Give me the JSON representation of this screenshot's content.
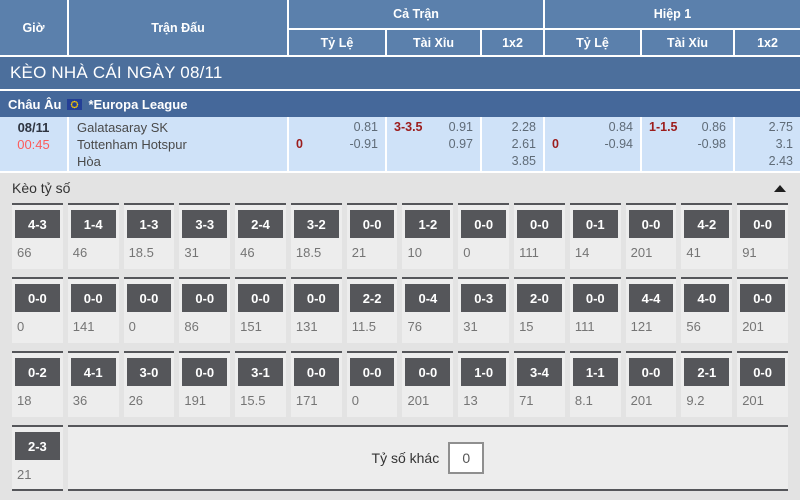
{
  "header": {
    "col_time": "Giờ",
    "col_match": "Trận Đấu",
    "group_full": "Cả Trận",
    "group_half": "Hiệp 1",
    "sub_handicap": "Tỷ Lệ",
    "sub_over_under": "Tài Xỉu",
    "sub_1x2": "1x2"
  },
  "banner": {
    "title": "KÈO NHÀ CÁI NGÀY 08/11"
  },
  "league": {
    "region": "Châu Âu",
    "name": "*Europa League"
  },
  "match": {
    "date": "08/11",
    "time": "00:45",
    "teams": {
      "home": "Galatasaray SK",
      "away": "Tottenham Hotspur",
      "draw": "Hòa"
    },
    "full_time": {
      "handicap_line": "0",
      "handicap_home": "0.81",
      "handicap_away": "-0.91",
      "ou_line": "3-3.5",
      "over": "0.91",
      "under": "0.97",
      "odds_home": "2.28",
      "odds_away": "2.61",
      "odds_draw": "3.85"
    },
    "first_half": {
      "handicap_line": "0",
      "handicap_home": "0.84",
      "handicap_away": "-0.94",
      "ou_line": "1-1.5",
      "over": "0.86",
      "under": "-0.98",
      "odds_home": "2.75",
      "odds_away": "3.1",
      "odds_draw": "2.43"
    }
  },
  "score_section": {
    "title": "Kèo tỷ số",
    "collapse_icon": "triangle-up",
    "other_label": "Tỷ số khác",
    "other_value": "0",
    "rows": [
      [
        {
          "score": "4-3",
          "odds": "66"
        },
        {
          "score": "1-4",
          "odds": "46"
        },
        {
          "score": "1-3",
          "odds": "18.5"
        },
        {
          "score": "3-3",
          "odds": "31"
        },
        {
          "score": "2-4",
          "odds": "46"
        },
        {
          "score": "3-2",
          "odds": "18.5"
        },
        {
          "score": "0-0",
          "odds": "21"
        },
        {
          "score": "1-2",
          "odds": "10"
        },
        {
          "score": "0-0",
          "odds": "0"
        },
        {
          "score": "0-0",
          "odds": "111"
        },
        {
          "score": "0-1",
          "odds": "14"
        },
        {
          "score": "0-0",
          "odds": "201"
        },
        {
          "score": "4-2",
          "odds": "41"
        },
        {
          "score": "0-0",
          "odds": "91"
        }
      ],
      [
        {
          "score": "0-0",
          "odds": "0"
        },
        {
          "score": "0-0",
          "odds": "141"
        },
        {
          "score": "0-0",
          "odds": "0"
        },
        {
          "score": "0-0",
          "odds": "86"
        },
        {
          "score": "0-0",
          "odds": "151"
        },
        {
          "score": "0-0",
          "odds": "131"
        },
        {
          "score": "2-2",
          "odds": "11.5"
        },
        {
          "score": "0-4",
          "odds": "76"
        },
        {
          "score": "0-3",
          "odds": "31"
        },
        {
          "score": "2-0",
          "odds": "15"
        },
        {
          "score": "0-0",
          "odds": "111"
        },
        {
          "score": "4-4",
          "odds": "121"
        },
        {
          "score": "4-0",
          "odds": "56"
        },
        {
          "score": "0-0",
          "odds": "201"
        }
      ],
      [
        {
          "score": "0-2",
          "odds": "18"
        },
        {
          "score": "4-1",
          "odds": "36"
        },
        {
          "score": "3-0",
          "odds": "26"
        },
        {
          "score": "0-0",
          "odds": "191"
        },
        {
          "score": "3-1",
          "odds": "15.5"
        },
        {
          "score": "0-0",
          "odds": "171"
        },
        {
          "score": "0-0",
          "odds": "0"
        },
        {
          "score": "0-0",
          "odds": "201"
        },
        {
          "score": "1-0",
          "odds": "13"
        },
        {
          "score": "3-4",
          "odds": "71"
        },
        {
          "score": "1-1",
          "odds": "8.1"
        },
        {
          "score": "0-0",
          "odds": "201"
        },
        {
          "score": "2-1",
          "odds": "9.2"
        },
        {
          "score": "0-0",
          "odds": "201"
        }
      ],
      [
        {
          "score": "2-3",
          "odds": "21"
        }
      ]
    ]
  },
  "colors": {
    "header_blue": "#5b80ac",
    "banner_blue": "#4c6f9c",
    "league_blue": "#45689a",
    "match_row_bg": "#cfe2f8",
    "handicap_red": "#9c1c1c",
    "time_red": "#fd5b5b",
    "score_box_gray": "#55565a",
    "section_bg": "#e3e3e3"
  }
}
